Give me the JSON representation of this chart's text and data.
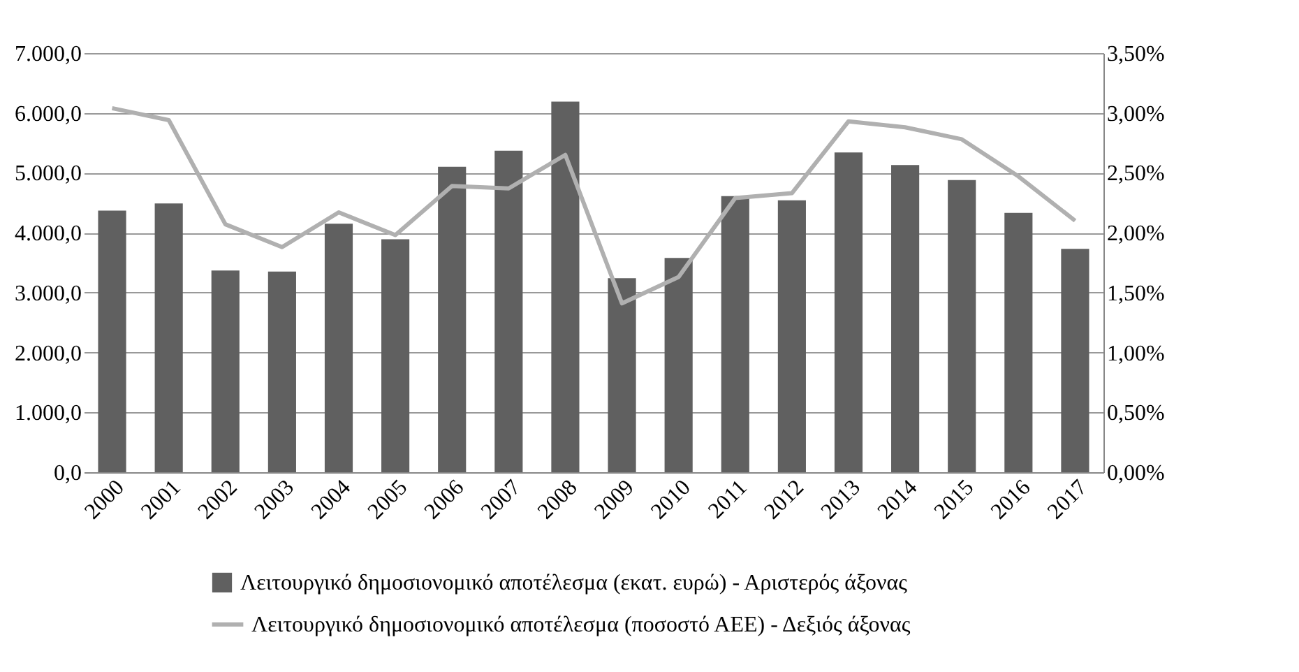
{
  "chart_data": {
    "type": "bar",
    "categories": [
      "2000",
      "2001",
      "2002",
      "2003",
      "2004",
      "2005",
      "2006",
      "2007",
      "2008",
      "2009",
      "2010",
      "2011",
      "2012",
      "2013",
      "2014",
      "2015",
      "2016",
      "2017"
    ],
    "series": [
      {
        "name": "Λειτουργικό δημοσιονομικό αποτέλεσμα (εκατ. ευρώ) - Αριστερός άξονας",
        "color": "#606060",
        "values": [
          4370,
          4490,
          3370,
          3350,
          4150,
          3890,
          5100,
          5370,
          6190,
          3240,
          3580,
          4610,
          4540,
          5340,
          5130,
          4880,
          4330,
          3730
        ]
      },
      {
        "name": "Λειτουργικό δημοσιονομικό αποτέλεσμα (ποσοστό ΑΕΕ) - Δεξιός άξονας",
        "type": "line",
        "axis": "y2",
        "color": "#b0b0b0",
        "values": [
          3.04,
          2.94,
          2.07,
          1.88,
          2.17,
          1.98,
          2.39,
          2.37,
          2.65,
          1.41,
          1.63,
          2.29,
          2.33,
          2.93,
          2.88,
          2.78,
          2.47,
          2.1
        ]
      }
    ],
    "ylim": [
      0,
      7000
    ],
    "yticks": [
      {
        "value": 0,
        "label": "0,0"
      },
      {
        "value": 1000,
        "label": "1.000,0"
      },
      {
        "value": 2000,
        "label": "2.000,0"
      },
      {
        "value": 3000,
        "label": "3.000,0"
      },
      {
        "value": 4000,
        "label": "4.000,0"
      },
      {
        "value": 5000,
        "label": "5.000,0"
      },
      {
        "value": 6000,
        "label": "6.000,0"
      },
      {
        "value": 7000,
        "label": "7.000,0"
      }
    ],
    "y2lim": [
      0,
      3.5
    ],
    "y2ticks": [
      {
        "value": 0,
        "label": "0,00%"
      },
      {
        "value": 0.5,
        "label": "0,50%"
      },
      {
        "value": 1,
        "label": "1,00%"
      },
      {
        "value": 1.5,
        "label": "1,50%"
      },
      {
        "value": 2,
        "label": "2,00%"
      },
      {
        "value": 2.5,
        "label": "2,50%"
      },
      {
        "value": 3,
        "label": "3,00%"
      },
      {
        "value": 3.5,
        "label": "3,50%"
      }
    ],
    "grid": "y",
    "legend": "bottom",
    "marker": "none",
    "line_style": "solid"
  }
}
